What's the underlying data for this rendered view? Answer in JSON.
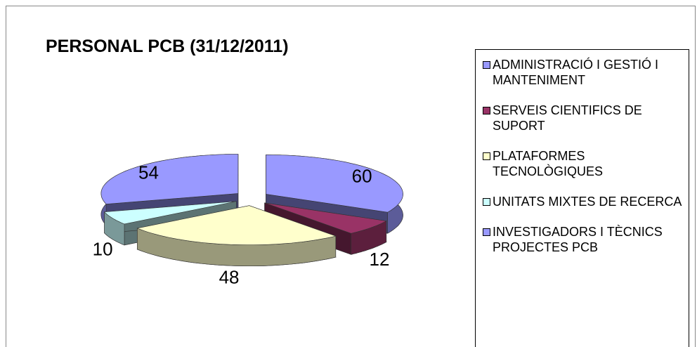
{
  "chart_data": {
    "type": "pie3d",
    "title": "PERSONAL PCB (31/12/2011)",
    "categories": [
      "ADMINISTRACIÓ I GESTIÓ I MANTENIMENT",
      "SERVEIS CIENTIFICS DE SUPORT",
      "PLATAFORMES TECNOLÒGIQUES",
      "UNITATS MIXTES DE RECERCA",
      "INVESTIGADORS I TÈCNICS PROJECTES PCB"
    ],
    "values": [
      60,
      12,
      48,
      10,
      54
    ],
    "colors": [
      "#9999ff",
      "#993366",
      "#ffffcc",
      "#ccffff",
      "#9999ff"
    ],
    "legend": "right"
  }
}
